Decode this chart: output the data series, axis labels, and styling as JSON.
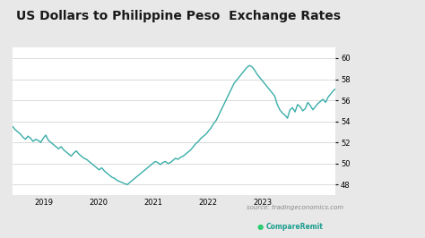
{
  "title": "US Dollars to Philippine Peso  Exchange Rates",
  "title_fontsize": 10,
  "background_color": "#e8e8e8",
  "plot_bg_color": "#ffffff",
  "line_color": "#3aada8",
  "line_width": 1.0,
  "ylim": [
    47,
    61
  ],
  "yticks": [
    48,
    50,
    52,
    54,
    56,
    58,
    60
  ],
  "source_text": "source: tradingeconomics.com",
  "compare_remit_text": "CompareRemit",
  "xlabel_years": [
    "2019",
    "2020",
    "2021",
    "2022",
    "2023"
  ],
  "series": [
    53.5,
    53.2,
    53.0,
    52.8,
    52.5,
    52.3,
    52.6,
    52.4,
    52.1,
    52.3,
    52.2,
    52.0,
    52.4,
    52.7,
    52.2,
    52.0,
    51.8,
    51.6,
    51.4,
    51.6,
    51.3,
    51.1,
    50.9,
    50.7,
    51.0,
    51.2,
    50.9,
    50.7,
    50.5,
    50.4,
    50.2,
    50.0,
    49.8,
    49.6,
    49.4,
    49.6,
    49.3,
    49.1,
    48.9,
    48.7,
    48.6,
    48.4,
    48.3,
    48.2,
    48.1,
    48.0,
    48.2,
    48.4,
    48.6,
    48.8,
    49.0,
    49.2,
    49.4,
    49.6,
    49.8,
    50.0,
    50.2,
    50.1,
    49.9,
    50.1,
    50.2,
    50.0,
    50.1,
    50.3,
    50.5,
    50.4,
    50.6,
    50.7,
    50.9,
    51.1,
    51.3,
    51.6,
    51.9,
    52.1,
    52.4,
    52.6,
    52.8,
    53.1,
    53.4,
    53.8,
    54.1,
    54.6,
    55.1,
    55.6,
    56.1,
    56.6,
    57.1,
    57.6,
    57.9,
    58.2,
    58.5,
    58.8,
    59.1,
    59.3,
    59.2,
    58.9,
    58.5,
    58.2,
    57.9,
    57.6,
    57.3,
    57.0,
    56.7,
    56.4,
    55.6,
    55.1,
    54.8,
    54.6,
    54.3,
    55.1,
    55.3,
    54.9,
    55.6,
    55.4,
    55.0,
    55.2,
    55.8,
    55.5,
    55.1,
    55.4,
    55.7,
    55.9,
    56.1,
    55.8,
    56.3,
    56.6,
    56.9,
    57.1
  ]
}
